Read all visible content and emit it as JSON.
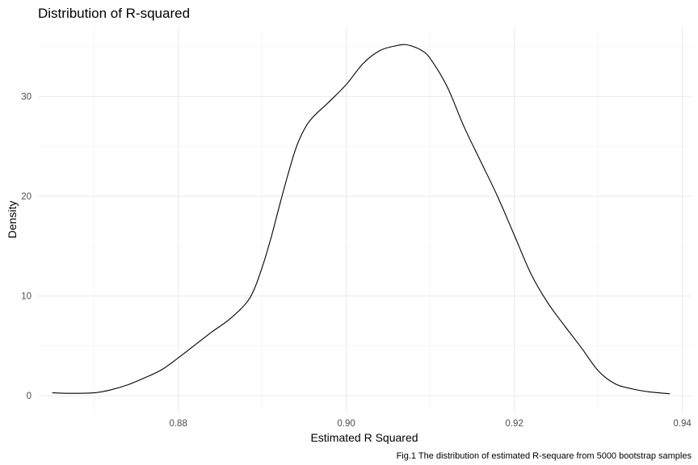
{
  "chart_data": {
    "type": "line",
    "title": "Distribution of R-squared",
    "xlabel": "Estimated R Squared",
    "ylabel": "Density",
    "caption": "Fig.1 The distribution of estimated R-sequare from 5000 bootstrap samples",
    "xlim": [
      0.8633,
      0.9411
    ],
    "ylim": [
      -1.76,
      37.0
    ],
    "x_ticks": [
      0.88,
      0.9,
      0.92,
      0.94
    ],
    "x_tick_labels": [
      "0.88",
      "0.90",
      "0.92",
      "0.94"
    ],
    "y_ticks": [
      0,
      10,
      20,
      30
    ],
    "y_tick_labels": [
      "0",
      "10",
      "20",
      "30"
    ],
    "grid": true,
    "line_color": "#000000",
    "series": [
      {
        "x": [
          0.865,
          0.867,
          0.87,
          0.872,
          0.874,
          0.876,
          0.878,
          0.88,
          0.882,
          0.884,
          0.886,
          0.888,
          0.889,
          0.89,
          0.891,
          0.892,
          0.893,
          0.894,
          0.895,
          0.896,
          0.898,
          0.9,
          0.902,
          0.904,
          0.906,
          0.907,
          0.908,
          0.909,
          0.91,
          0.912,
          0.914,
          0.916,
          0.918,
          0.92,
          0.922,
          0.924,
          0.926,
          0.928,
          0.93,
          0.932,
          0.934,
          0.936,
          0.9385
        ],
        "y": [
          0.3,
          0.25,
          0.3,
          0.6,
          1.1,
          1.8,
          2.6,
          3.8,
          5.1,
          6.4,
          7.6,
          9.2,
          10.6,
          12.9,
          15.7,
          18.9,
          22.0,
          24.8,
          26.7,
          27.9,
          29.5,
          31.2,
          33.3,
          34.6,
          35.1,
          35.2,
          35.0,
          34.6,
          33.8,
          31.0,
          27.0,
          23.5,
          20.0,
          16.1,
          12.2,
          9.3,
          7.0,
          4.8,
          2.5,
          1.2,
          0.7,
          0.4,
          0.2
        ]
      }
    ]
  }
}
